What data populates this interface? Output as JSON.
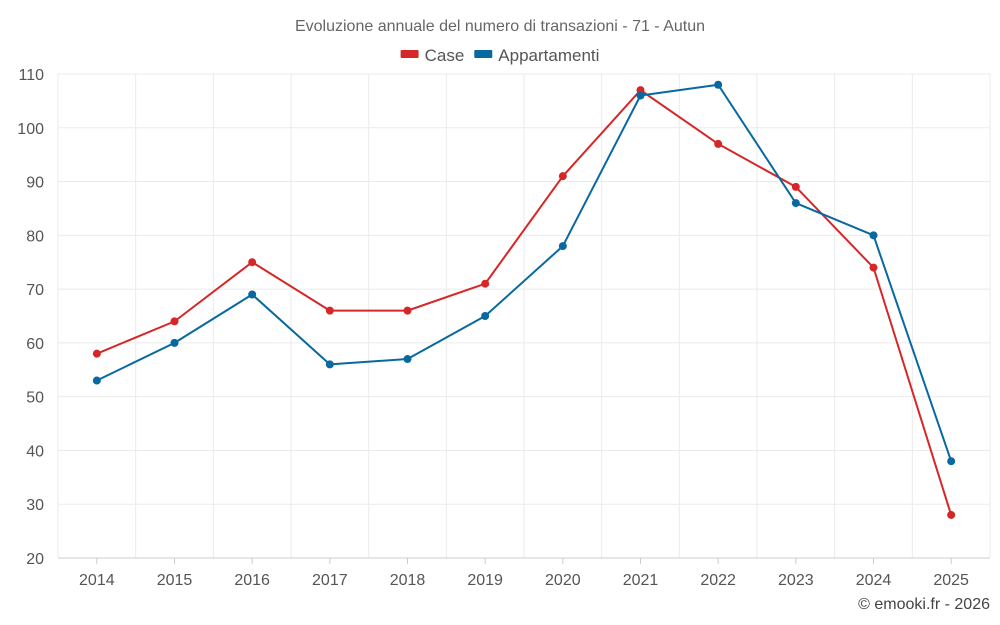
{
  "chart_data": {
    "type": "line",
    "title": "Evoluzione annuale del numero di transazioni - 71 - Autun",
    "categories": [
      "2014",
      "2015",
      "2016",
      "2017",
      "2018",
      "2019",
      "2020",
      "2021",
      "2022",
      "2023",
      "2024",
      "2025"
    ],
    "series": [
      {
        "name": "Case",
        "color": "#d62728",
        "values": [
          58,
          64,
          75,
          66,
          66,
          71,
          91,
          107,
          97,
          89,
          74,
          28
        ]
      },
      {
        "name": "Appartamenti",
        "color": "#0868a0",
        "values": [
          53,
          60,
          69,
          56,
          57,
          65,
          78,
          106,
          108,
          86,
          80,
          38
        ]
      }
    ],
    "ylim": [
      20,
      110
    ],
    "yticks": [
      20,
      30,
      40,
      50,
      60,
      70,
      80,
      90,
      100,
      110
    ],
    "grid": true,
    "legend_position": "top-center",
    "xlabel": "",
    "ylabel": ""
  },
  "credit": "© emooki.fr - 2026"
}
